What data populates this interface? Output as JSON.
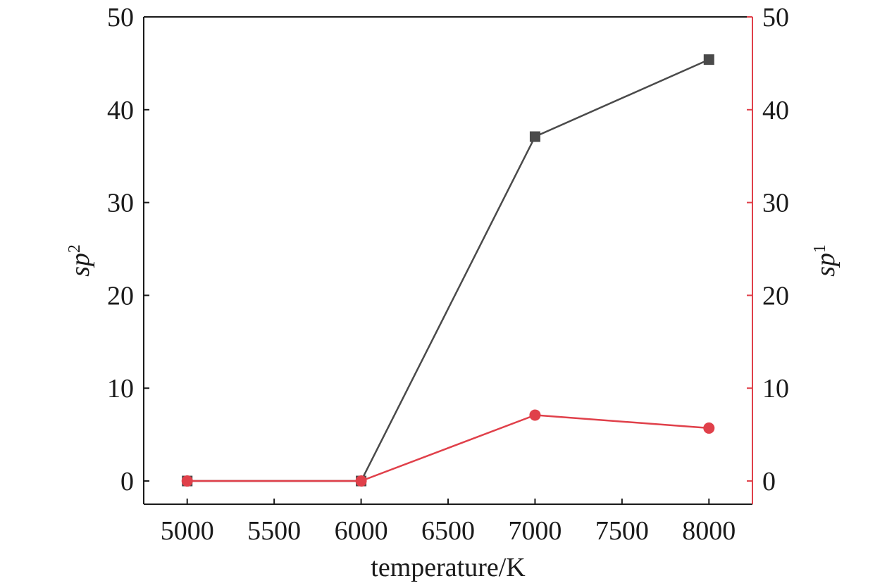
{
  "chart_data": {
    "type": "line",
    "xlabel": "temperature/K",
    "ylabel_left": {
      "base": "sp",
      "sup": "2"
    },
    "ylabel_right": {
      "base": "sp",
      "sup": "1"
    },
    "x_ticks": [
      5000,
      5500,
      6000,
      6500,
      7000,
      7500,
      8000
    ],
    "y_ticks": [
      0,
      10,
      20,
      30,
      40,
      50
    ],
    "xlim": [
      4750,
      8250
    ],
    "ylim_left": [
      -2.5,
      50
    ],
    "ylim_right": [
      -2.5,
      50
    ],
    "grid": false,
    "x": [
      5000,
      6000,
      7000,
      8000
    ],
    "series": [
      {
        "axis": "left",
        "marker": "square",
        "color": "#4a4a4a",
        "values": [
          0,
          0,
          37.1,
          45.4
        ]
      },
      {
        "axis": "right",
        "marker": "circle",
        "color": "#e0404a",
        "values": [
          0,
          0,
          7.1,
          5.7
        ]
      }
    ],
    "colors": {
      "axis": "#1a1a1a",
      "right_axis": "#e0404a"
    }
  }
}
